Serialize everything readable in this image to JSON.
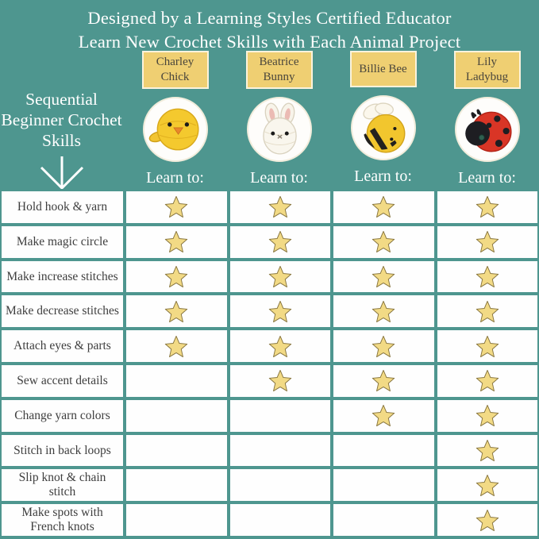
{
  "header": {
    "line1": "Designed by a Learning Styles Certified Educator",
    "line2": "Learn New Crochet Skills with Each Animal Project"
  },
  "sidebar": {
    "title": "Sequential Beginner Crochet Skills",
    "arrow_icon": "down-arrow"
  },
  "labels": {
    "learn_to": "Learn to:"
  },
  "animals": [
    {
      "name": "Charley Chick",
      "icon": "chick-amigurumi"
    },
    {
      "name": "Beatrice Bunny",
      "icon": "bunny-amigurumi"
    },
    {
      "name": "Billie Bee",
      "icon": "bee-amigurumi"
    },
    {
      "name": "Lily Ladybug",
      "icon": "ladybug-amigurumi"
    }
  ],
  "chart_data": {
    "type": "table",
    "title": "Designed by a Learning Styles Certified Educator",
    "subtitle": "Learn New Crochet Skills with Each Animal Project",
    "row_header": "Sequential Beginner Crochet Skills",
    "columns": [
      "Charley Chick",
      "Beatrice Bunny",
      "Billie Bee",
      "Lily Ladybug"
    ],
    "rows": [
      "Hold hook & yarn",
      "Make magic circle",
      "Make increase stitches",
      "Make decrease stitches",
      "Attach eyes & parts",
      "Sew accent details",
      "Change yarn colors",
      "Stitch in back loops",
      "Slip knot & chain stitch",
      "Make spots with French knots"
    ],
    "values": [
      [
        1,
        1,
        1,
        1
      ],
      [
        1,
        1,
        1,
        1
      ],
      [
        1,
        1,
        1,
        1
      ],
      [
        1,
        1,
        1,
        1
      ],
      [
        1,
        1,
        1,
        1
      ],
      [
        0,
        1,
        1,
        1
      ],
      [
        0,
        0,
        1,
        1
      ],
      [
        0,
        0,
        0,
        1
      ],
      [
        0,
        0,
        0,
        1
      ],
      [
        0,
        0,
        0,
        1
      ]
    ],
    "marker": "star"
  },
  "colors": {
    "background_teal": "#4E968F",
    "cell_white": "#FEFEFE",
    "name_box_fill": "#EFCF72",
    "name_box_border": "#FBF3DC",
    "star_fill": "#F2DA85",
    "star_outline": "#87753F",
    "header_text": "#FFFFFF",
    "label_text": "#3E3E3E"
  }
}
